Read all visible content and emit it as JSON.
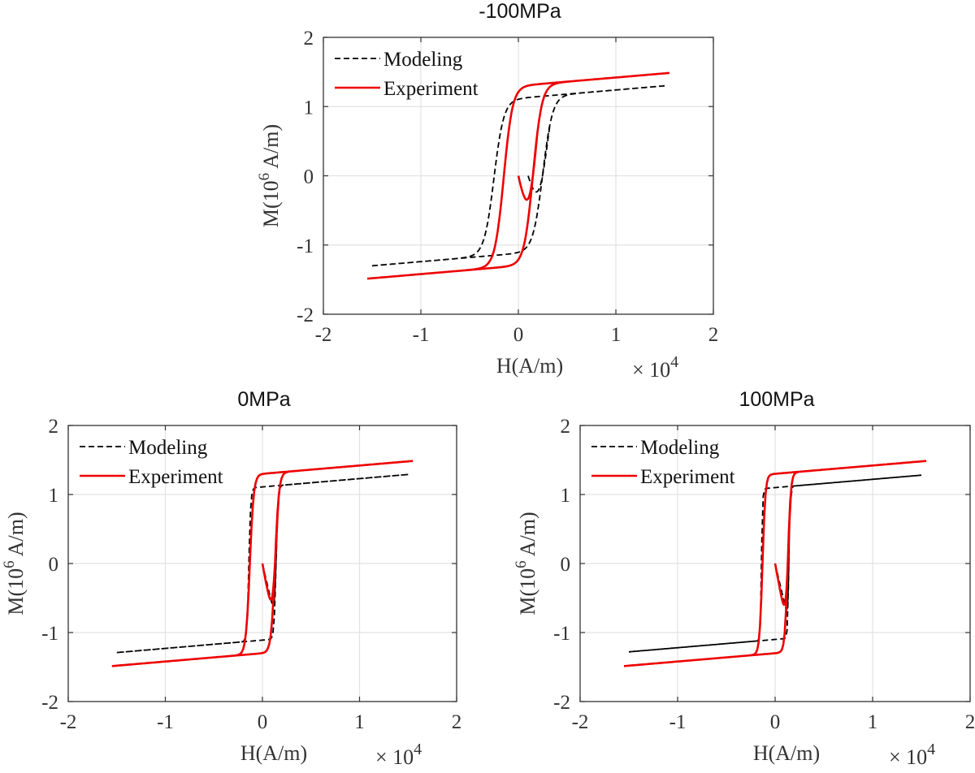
{
  "chart_data": [
    {
      "type": "line",
      "title": "-100MPa",
      "xlabel": "H(A/m)",
      "ylabel": "M(10^6 A/m)",
      "x_exponent_label": "× 10^4",
      "xlim": [
        -2,
        2
      ],
      "ylim": [
        -2,
        2
      ],
      "xticks": [
        "-2",
        "-1",
        "0",
        "1",
        "2"
      ],
      "yticks": [
        "-2",
        "-1",
        "0",
        "1",
        "2"
      ],
      "grid": true,
      "legend": "top-left",
      "series": [
        {
          "name": "Modeling",
          "color": "#000000",
          "style": "dashed",
          "Hmax": 1.5,
          "Ms": 1.12,
          "Hc": 0.25,
          "a": 0.1,
          "initial_H": 0.1
        },
        {
          "name": "Experiment",
          "color": "#ee0000",
          "style": "solid",
          "Hmax": 1.55,
          "Ms": 1.3,
          "Hc": 0.15,
          "a": 0.09,
          "initial_H": 0.0
        }
      ]
    },
    {
      "type": "line",
      "title": "0MPa",
      "xlabel": "H(A/m)",
      "ylabel": "M(10^6 A/m)",
      "x_exponent_label": "× 10^4",
      "xlim": [
        -2,
        2
      ],
      "ylim": [
        -2,
        2
      ],
      "xticks": [
        "-2",
        "-1",
        "0",
        "1",
        "2"
      ],
      "yticks": [
        "-2",
        "-1",
        "0",
        "1",
        "2"
      ],
      "grid": true,
      "legend": "top-left",
      "series": [
        {
          "name": "Modeling",
          "color": "#000000",
          "style": "dashed",
          "Hmax": 1.5,
          "Ms": 1.11,
          "Hc": 0.14,
          "a": 0.02,
          "initial_H": 0.0
        },
        {
          "name": "Experiment",
          "color": "#ee0000",
          "style": "solid",
          "Hmax": 1.55,
          "Ms": 1.3,
          "Hc": 0.13,
          "a": 0.04,
          "initial_H": 0.0
        }
      ]
    },
    {
      "type": "line",
      "title": "100MPa",
      "xlabel": "H(A/m)",
      "ylabel": "M(10^6 A/m)",
      "x_exponent_label": "× 10^4",
      "xlim": [
        -2,
        2
      ],
      "ylim": [
        -2,
        2
      ],
      "xticks": [
        "-2",
        "-1",
        "0",
        "1",
        "2"
      ],
      "yticks": [
        "-2",
        "-1",
        "0",
        "1",
        "2"
      ],
      "grid": true,
      "legend": "top-left",
      "series": [
        {
          "name": "Modeling",
          "color": "#000000",
          "style": "dashed",
          "Hmax": 1.5,
          "Ms": 1.1,
          "Hc": 0.14,
          "a": 0.012,
          "initial_H": 0.0
        },
        {
          "name": "Experiment",
          "color": "#ee0000",
          "style": "solid",
          "Hmax": 1.55,
          "Ms": 1.3,
          "Hc": 0.13,
          "a": 0.03,
          "initial_H": 0.0
        }
      ]
    }
  ]
}
